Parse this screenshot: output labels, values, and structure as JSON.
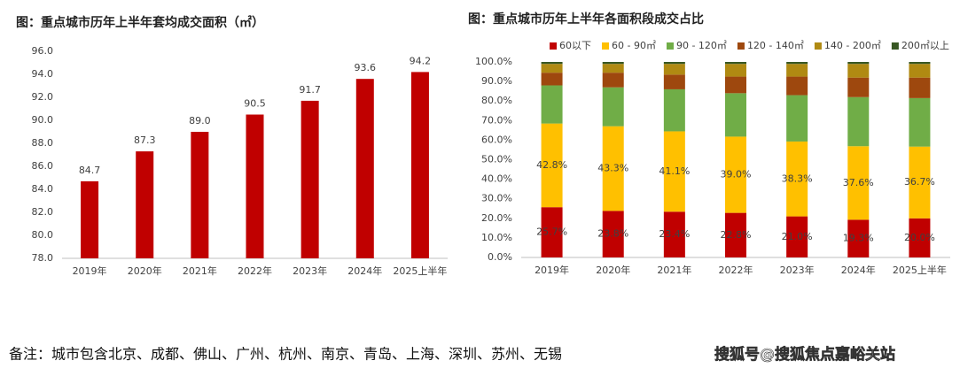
{
  "chart_data": [
    {
      "type": "bar",
      "title": "图：重点城市历年上半年套均成交面积（㎡）",
      "categories": [
        "2019年",
        "2020年",
        "2021年",
        "2022年",
        "2023年",
        "2024年",
        "2025上半年"
      ],
      "values": [
        84.7,
        87.3,
        89.0,
        90.5,
        91.7,
        93.6,
        94.2
      ],
      "value_labels": [
        "84.7",
        "87.3",
        "89.0",
        "90.5",
        "91.7",
        "93.6",
        "94.2"
      ],
      "color": "#c00000",
      "ylim": [
        78,
        96
      ],
      "yticks": [
        {
          "value": 78,
          "label": "78.0"
        },
        {
          "value": 80,
          "label": "80.0"
        },
        {
          "value": 82,
          "label": "82.0"
        },
        {
          "value": 84,
          "label": "84.0"
        },
        {
          "value": 86,
          "label": "86.0"
        },
        {
          "value": 88,
          "label": "88.0"
        },
        {
          "value": 90,
          "label": "90.0"
        },
        {
          "value": 92,
          "label": "92.0"
        },
        {
          "value": 94,
          "label": "94.0"
        },
        {
          "value": 96,
          "label": "96.0"
        }
      ],
      "grid": false
    },
    {
      "type": "stacked_bar",
      "title": "图：重点城市历年上半年各面积段成交占比",
      "categories": [
        "2019年",
        "2020年",
        "2021年",
        "2022年",
        "2023年",
        "2024年",
        "2025上半年"
      ],
      "series": [
        {
          "name": "60以下",
          "color": "#c00000",
          "values": [
            25.7,
            23.8,
            23.4,
            22.8,
            21.0,
            19.3,
            20.0
          ],
          "value_labels": [
            "25.7%",
            "23.8%",
            "23.4%",
            "22.8%",
            "21.0%",
            "19.3%",
            "20.0%"
          ]
        },
        {
          "name": "60 - 90㎡",
          "color": "#ffc000",
          "values": [
            42.8,
            43.3,
            41.1,
            39.0,
            38.3,
            37.6,
            36.7
          ],
          "value_labels": [
            "42.8%",
            "43.3%",
            "41.1%",
            "39.0%",
            "38.3%",
            "37.6%",
            "36.7%"
          ]
        },
        {
          "name": "90 - 120㎡",
          "color": "#70ad47",
          "values": [
            19.5,
            19.9,
            21.5,
            22.2,
            23.7,
            25.1,
            24.8
          ]
        },
        {
          "name": "120 - 140㎡",
          "color": "#9e480e",
          "values": [
            6.5,
            7.5,
            7.5,
            8.5,
            9.5,
            10,
            10.5
          ]
        },
        {
          "name": "140 - 200㎡",
          "color": "#b08a12",
          "values": [
            4.5,
            4.5,
            5.5,
            6.5,
            6.5,
            7,
            7
          ]
        },
        {
          "name": "200㎡以上",
          "color": "#385723",
          "values": [
            1,
            1,
            1,
            1,
            1,
            1,
            1
          ]
        }
      ],
      "ylim": [
        0,
        100
      ],
      "yticks": [
        {
          "value": 0,
          "label": "0.0%"
        },
        {
          "value": 10,
          "label": "10.0%"
        },
        {
          "value": 20,
          "label": "20.0%"
        },
        {
          "value": 30,
          "label": "30.0%"
        },
        {
          "value": 40,
          "label": "40.0%"
        },
        {
          "value": 50,
          "label": "50.0%"
        },
        {
          "value": 60,
          "label": "60.0%"
        },
        {
          "value": 70,
          "label": "70.0%"
        },
        {
          "value": 80,
          "label": "80.0%"
        },
        {
          "value": 90,
          "label": "90.0%"
        },
        {
          "value": 100,
          "label": "100.0%"
        }
      ],
      "grid": false,
      "legend": "top"
    }
  ],
  "footnote": "备注：城市包含北京、成都、佛山、广州、杭州、南京、青岛、上海、深圳、苏州、无锡",
  "watermark": "搜狐号@搜狐焦点嘉峪关站"
}
